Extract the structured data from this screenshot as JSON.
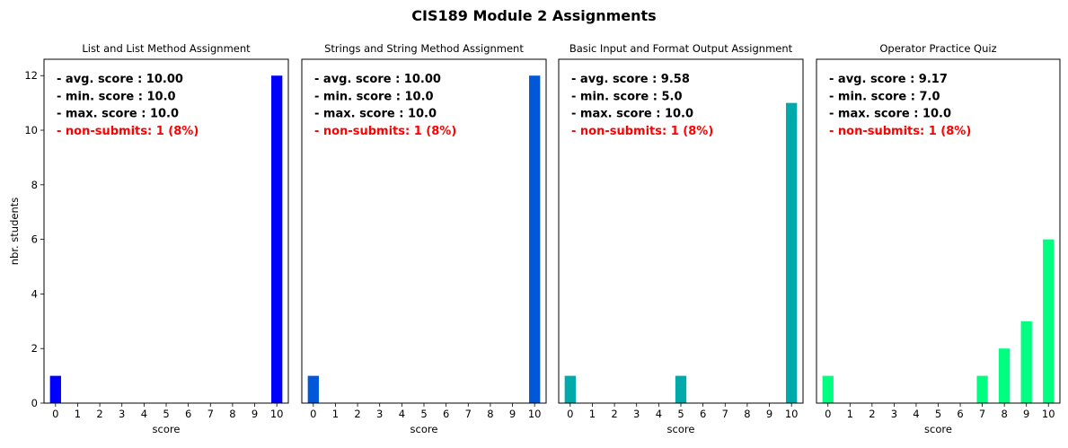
{
  "figure": {
    "title": "CIS189 Module 2 Assignments"
  },
  "chart_data": [
    {
      "type": "bar",
      "title": "List and List Method Assignment",
      "xlabel": "score",
      "ylabel": "nbr. students",
      "categories": [
        "0",
        "1",
        "2",
        "3",
        "4",
        "5",
        "6",
        "7",
        "8",
        "9",
        "10"
      ],
      "values": [
        1,
        0,
        0,
        0,
        0,
        0,
        0,
        0,
        0,
        0,
        12
      ],
      "ylim": [
        0,
        12.6
      ],
      "yticks": [
        0,
        2,
        4,
        6,
        8,
        10,
        12
      ],
      "color": "#0000ff",
      "annotations": [
        "- avg. score : 10.00",
        "- min. score : 10.0",
        "- max. score : 10.0",
        "- non-submits: 1 (8%)"
      ],
      "annotation_colors": [
        "#000000",
        "#000000",
        "#000000",
        "#ff0000"
      ]
    },
    {
      "type": "bar",
      "title": "Strings and String Method Assignment",
      "xlabel": "score",
      "ylabel": "",
      "categories": [
        "0",
        "1",
        "2",
        "3",
        "4",
        "5",
        "6",
        "7",
        "8",
        "9",
        "10"
      ],
      "values": [
        1,
        0,
        0,
        0,
        0,
        0,
        0,
        0,
        0,
        0,
        12
      ],
      "ylim": [
        0,
        12.6
      ],
      "yticks": [],
      "color": "#0058d8",
      "annotations": [
        "- avg. score : 10.00",
        "- min. score : 10.0",
        "- max. score : 10.0",
        "- non-submits: 1 (8%)"
      ],
      "annotation_colors": [
        "#000000",
        "#000000",
        "#000000",
        "#ff0000"
      ]
    },
    {
      "type": "bar",
      "title": "Basic Input and Format Output Assignment",
      "xlabel": "score",
      "ylabel": "",
      "categories": [
        "0",
        "1",
        "2",
        "3",
        "4",
        "5",
        "6",
        "7",
        "8",
        "9",
        "10"
      ],
      "values": [
        1,
        0,
        0,
        0,
        0,
        1,
        0,
        0,
        0,
        0,
        11
      ],
      "ylim": [
        0,
        12.6
      ],
      "yticks": [],
      "color": "#00aaaa",
      "annotations": [
        "- avg. score : 9.58",
        "- min. score : 5.0",
        "- max. score : 10.0",
        "- non-submits: 1 (8%)"
      ],
      "annotation_colors": [
        "#000000",
        "#000000",
        "#000000",
        "#ff0000"
      ]
    },
    {
      "type": "bar",
      "title": "Operator Practice Quiz",
      "xlabel": "score",
      "ylabel": "",
      "categories": [
        "0",
        "1",
        "2",
        "3",
        "4",
        "5",
        "6",
        "7",
        "8",
        "9",
        "10"
      ],
      "values": [
        1,
        0,
        0,
        0,
        0,
        0,
        0,
        1,
        2,
        3,
        6
      ],
      "ylim": [
        0,
        12.6
      ],
      "yticks": [],
      "color": "#00ff80",
      "annotations": [
        "- avg. score : 9.17",
        "- min. score : 7.0",
        "- max. score : 10.0",
        "- non-submits: 1 (8%)"
      ],
      "annotation_colors": [
        "#000000",
        "#000000",
        "#000000",
        "#ff0000"
      ]
    }
  ]
}
